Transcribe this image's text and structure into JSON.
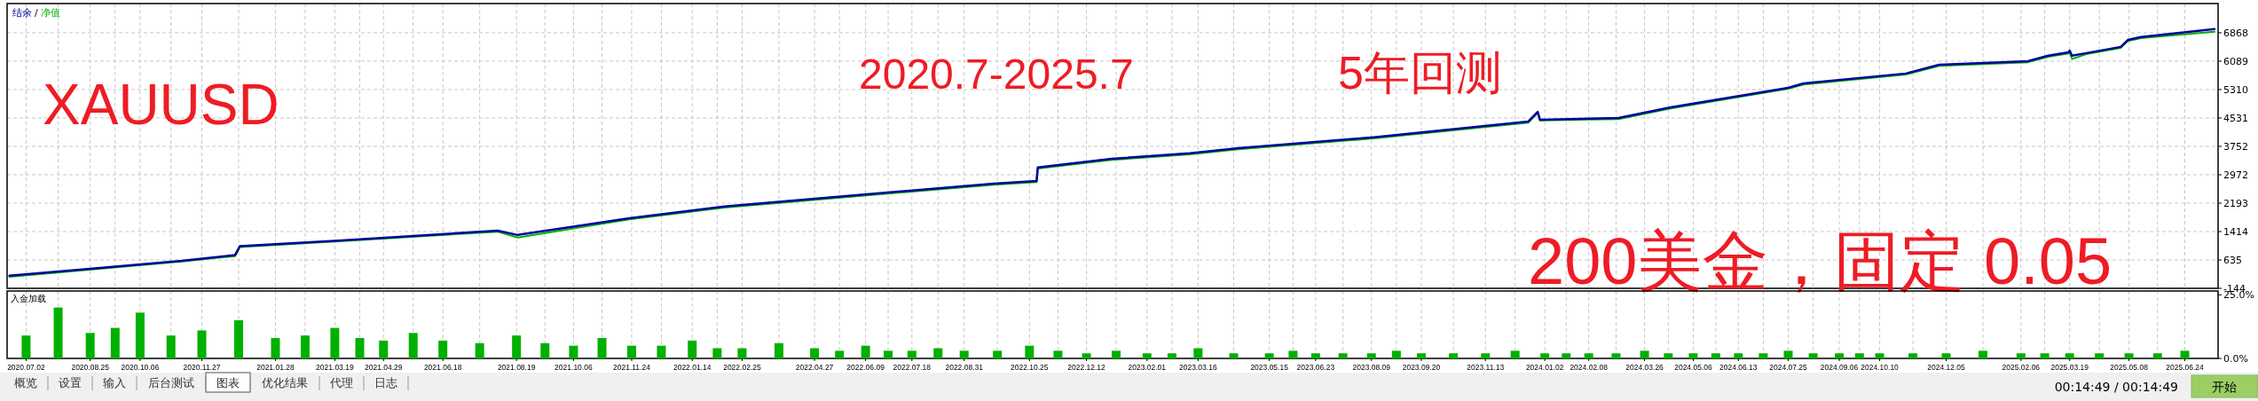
{
  "chart_data": [
    {
      "type": "line",
      "legend": "top left",
      "grid": true,
      "tick_labels": "y",
      "annotations": [
        "XAUUSD",
        "2020.7-2025.7",
        "5年回测",
        "200美金，固定 0.05",
        "/"
      ],
      "xlim": [
        "2020-06-16",
        "2025-07-22"
      ],
      "ylim": [
        -144,
        7670
      ],
      "yticks": [
        -144,
        635,
        1414,
        2193,
        2972,
        3752,
        4531,
        5310,
        6089,
        6868
      ],
      "xticks": [
        {
          "value": "2020-07-02",
          "label": null
        },
        {
          "value": "2020-07-29",
          "label": null
        },
        {
          "value": "2020-08-25",
          "label": null
        },
        {
          "value": "2020-09-15",
          "label": null
        },
        {
          "value": "2020-10-06",
          "label": null
        },
        {
          "value": "2020-11-01",
          "label": null
        },
        {
          "value": "2020-11-27",
          "label": null
        },
        {
          "value": "2020-12-28",
          "label": null
        },
        {
          "value": "2021-01-28",
          "label": null
        },
        {
          "value": "2021-02-22",
          "label": null
        },
        {
          "value": "2021-03-19",
          "label": null
        },
        {
          "value": "2021-04-09",
          "label": null
        },
        {
          "value": "2021-04-29",
          "label": null
        },
        {
          "value": "2021-05-24",
          "label": null
        },
        {
          "value": "2021-06-18",
          "label": null
        },
        {
          "value": "2021-07-19",
          "label": null
        },
        {
          "value": "2021-08-19",
          "label": null
        },
        {
          "value": "2021-09-12",
          "label": null
        },
        {
          "value": "2021-10-06",
          "label": null
        },
        {
          "value": "2021-10-30",
          "label": null
        },
        {
          "value": "2021-11-24",
          "label": null
        },
        {
          "value": "2021-12-19",
          "label": null
        },
        {
          "value": "2022-01-14",
          "label": null
        },
        {
          "value": "2022-02-04",
          "label": null
        },
        {
          "value": "2022-02-25",
          "label": null
        },
        {
          "value": "2022-03-28",
          "label": null
        },
        {
          "value": "2022-04-27",
          "label": null
        },
        {
          "value": "2022-05-18",
          "label": null
        },
        {
          "value": "2022-06-09",
          "label": null
        },
        {
          "value": "2022-06-28",
          "label": null
        },
        {
          "value": "2022-07-18",
          "label": null
        },
        {
          "value": "2022-08-09",
          "label": null
        },
        {
          "value": "2022-08-31",
          "label": null
        },
        {
          "value": "2022-09-28",
          "label": null
        },
        {
          "value": "2022-10-25",
          "label": null
        },
        {
          "value": "2022-11-18",
          "label": null
        },
        {
          "value": "2022-12-12",
          "label": null
        },
        {
          "value": "2023-01-06",
          "label": null
        },
        {
          "value": "2023-02-01",
          "label": null
        },
        {
          "value": "2023-02-22",
          "label": null
        },
        {
          "value": "2023-03-16",
          "label": null
        },
        {
          "value": "2023-04-15",
          "label": null
        },
        {
          "value": "2023-05-15",
          "label": null
        },
        {
          "value": "2023-06-04",
          "label": null
        },
        {
          "value": "2023-06-23",
          "label": null
        },
        {
          "value": "2023-07-16",
          "label": null
        },
        {
          "value": "2023-08-09",
          "label": null
        },
        {
          "value": "2023-08-30",
          "label": null
        },
        {
          "value": "2023-09-20",
          "label": null
        },
        {
          "value": "2023-10-17",
          "label": null
        },
        {
          "value": "2023-11-13",
          "label": null
        },
        {
          "value": "2023-12-08",
          "label": null
        },
        {
          "value": "2024-01-02",
          "label": null
        },
        {
          "value": "2024-01-20",
          "label": null
        },
        {
          "value": "2024-02-08",
          "label": null
        },
        {
          "value": "2024-03-02",
          "label": null
        },
        {
          "value": "2024-03-26",
          "label": null
        },
        {
          "value": "2024-04-15",
          "label": null
        },
        {
          "value": "2024-05-06",
          "label": null
        },
        {
          "value": "2024-05-25",
          "label": null
        },
        {
          "value": "2024-06-13",
          "label": null
        },
        {
          "value": "2024-07-04",
          "label": null
        },
        {
          "value": "2024-07-25",
          "label": null
        },
        {
          "value": "2024-08-15",
          "label": null
        },
        {
          "value": "2024-09-06",
          "label": null
        },
        {
          "value": "2024-09-23",
          "label": null
        },
        {
          "value": "2024-10-10",
          "label": null
        },
        {
          "value": "2024-11-07",
          "label": null
        },
        {
          "value": "2024-12-05",
          "label": null
        },
        {
          "value": "2025-01-05",
          "label": null
        },
        {
          "value": "2025-02-06",
          "label": null
        },
        {
          "value": "2025-02-26",
          "label": null
        },
        {
          "value": "2025-03-19",
          "label": null
        },
        {
          "value": "2025-04-13",
          "label": null
        },
        {
          "value": "2025-05-08",
          "label": null
        },
        {
          "value": "2025-06-01",
          "label": null
        },
        {
          "value": "2025-06-24",
          "label": null
        }
      ],
      "series": [
        {
          "name": "净值",
          "color": "#00b000",
          "x": [
            "2020-06-18",
            "2020-08-16",
            "2020-11-10",
            "2020-12-25",
            "2020-12-29",
            "2021-03-25",
            "2021-08-03",
            "2021-08-20",
            "2021-11-22",
            "2022-02-10",
            "2022-05-06",
            "2022-09-25",
            "2022-10-31",
            "2022-11-01",
            "2023-01-02",
            "2023-03-09",
            "2023-04-19",
            "2023-08-11",
            "2023-12-19",
            "2023-12-27",
            "2023-12-29",
            "2024-03-04",
            "2024-04-17",
            "2024-07-25",
            "2024-08-07",
            "2024-11-01",
            "2024-11-29",
            "2025-02-12",
            "2025-03-01",
            "2025-03-18",
            "2025-03-19",
            "2025-03-21",
            "2025-04-02",
            "2025-05-01",
            "2025-05-07",
            "2025-05-18",
            "2025-07-19"
          ],
          "values": [
            170,
            340,
            590,
            740,
            990,
            1150,
            1410,
            1250,
            1750,
            2070,
            2310,
            2700,
            2770,
            3140,
            3380,
            3530,
            3670,
            3970,
            4400,
            4670,
            4460,
            4500,
            4790,
            5330,
            5450,
            5720,
            5960,
            6060,
            6210,
            6300,
            6350,
            6150,
            6280,
            6450,
            6640,
            6720,
            6900
          ]
        },
        {
          "name": "结余",
          "color": "#0000a0",
          "x": [
            "2020-06-18",
            "2020-08-16",
            "2020-11-10",
            "2020-12-25",
            "2020-12-29",
            "2021-03-25",
            "2021-08-03",
            "2021-08-20",
            "2021-11-22",
            "2022-02-10",
            "2022-05-06",
            "2022-09-25",
            "2022-10-31",
            "2022-11-01",
            "2023-01-02",
            "2023-03-09",
            "2023-04-19",
            "2023-08-11",
            "2023-12-19",
            "2023-12-27",
            "2023-12-29",
            "2024-03-04",
            "2024-04-17",
            "2024-07-25",
            "2024-08-07",
            "2024-11-01",
            "2024-11-29",
            "2025-02-12",
            "2025-03-01",
            "2025-03-18",
            "2025-03-19",
            "2025-03-21",
            "2025-04-02",
            "2025-05-01",
            "2025-05-07",
            "2025-05-18",
            "2025-07-19"
          ],
          "values": [
            200,
            370,
            610,
            770,
            1010,
            1170,
            1440,
            1320,
            1780,
            2100,
            2340,
            2730,
            2800,
            3170,
            3410,
            3560,
            3700,
            4000,
            4430,
            4700,
            4480,
            4530,
            4820,
            5360,
            5480,
            5750,
            5990,
            6090,
            6240,
            6330,
            6380,
            6240,
            6310,
            6480,
            6670,
            6750,
            6970
          ]
        }
      ]
    },
    {
      "type": "bar",
      "title": "入金加载",
      "grid": "x",
      "xlim": [
        "2020-06-16",
        "2025-07-22"
      ],
      "ylim": [
        0,
        26.5
      ],
      "yticks": [
        {
          "value": 0,
          "label": "0.0%"
        },
        {
          "value": 25,
          "label": "25.0%"
        }
      ],
      "xticks": [
        {
          "value": "2020-07-02",
          "label": "2020.07.02"
        },
        {
          "value": "2020-07-29",
          "label": null
        },
        {
          "value": "2020-08-25",
          "label": "2020.08.25"
        },
        {
          "value": "2020-09-15",
          "label": null
        },
        {
          "value": "2020-10-06",
          "label": "2020.10.06"
        },
        {
          "value": "2020-11-01",
          "label": null
        },
        {
          "value": "2020-11-27",
          "label": "2020.11.27"
        },
        {
          "value": "2020-12-28",
          "label": null
        },
        {
          "value": "2021-01-28",
          "label": "2021.01.28"
        },
        {
          "value": "2021-02-22",
          "label": null
        },
        {
          "value": "2021-03-19",
          "label": "2021.03.19"
        },
        {
          "value": "2021-04-09",
          "label": null
        },
        {
          "value": "2021-04-29",
          "label": "2021.04.29"
        },
        {
          "value": "2021-05-24",
          "label": null
        },
        {
          "value": "2021-06-18",
          "label": "2021.06.18"
        },
        {
          "value": "2021-07-19",
          "label": null
        },
        {
          "value": "2021-08-19",
          "label": "2021.08.19"
        },
        {
          "value": "2021-09-12",
          "label": null
        },
        {
          "value": "2021-10-06",
          "label": "2021.10.06"
        },
        {
          "value": "2021-10-30",
          "label": null
        },
        {
          "value": "2021-11-24",
          "label": "2021.11.24"
        },
        {
          "value": "2021-12-19",
          "label": null
        },
        {
          "value": "2022-01-14",
          "label": "2022.01.14"
        },
        {
          "value": "2022-02-04",
          "label": null
        },
        {
          "value": "2022-02-25",
          "label": "2022.02.25"
        },
        {
          "value": "2022-03-28",
          "label": null
        },
        {
          "value": "2022-04-27",
          "label": "2022.04.27"
        },
        {
          "value": "2022-05-18",
          "label": null
        },
        {
          "value": "2022-06-09",
          "label": "2022.06.09"
        },
        {
          "value": "2022-06-28",
          "label": null
        },
        {
          "value": "2022-07-18",
          "label": "2022.07.18"
        },
        {
          "value": "2022-08-09",
          "label": null
        },
        {
          "value": "2022-08-31",
          "label": "2022.08.31"
        },
        {
          "value": "2022-09-28",
          "label": null
        },
        {
          "value": "2022-10-25",
          "label": "2022.10.25"
        },
        {
          "value": "2022-11-18",
          "label": null
        },
        {
          "value": "2022-12-12",
          "label": "2022.12.12"
        },
        {
          "value": "2023-01-06",
          "label": null
        },
        {
          "value": "2023-02-01",
          "label": "2023.02.01"
        },
        {
          "value": "2023-02-22",
          "label": null
        },
        {
          "value": "2023-03-16",
          "label": "2023.03.16"
        },
        {
          "value": "2023-04-15",
          "label": null
        },
        {
          "value": "2023-05-15",
          "label": "2023.05.15"
        },
        {
          "value": "2023-06-04",
          "label": null
        },
        {
          "value": "2023-06-23",
          "label": "2023.06.23"
        },
        {
          "value": "2023-07-16",
          "label": null
        },
        {
          "value": "2023-08-09",
          "label": "2023.08.09"
        },
        {
          "value": "2023-08-30",
          "label": null
        },
        {
          "value": "2023-09-20",
          "label": "2023.09.20"
        },
        {
          "value": "2023-10-17",
          "label": null
        },
        {
          "value": "2023-11-13",
          "label": "2023.11.13"
        },
        {
          "value": "2023-12-08",
          "label": null
        },
        {
          "value": "2024-01-02",
          "label": "2024.01.02"
        },
        {
          "value": "2024-01-20",
          "label": null
        },
        {
          "value": "2024-02-08",
          "label": "2024.02.08"
        },
        {
          "value": "2024-03-02",
          "label": null
        },
        {
          "value": "2024-03-26",
          "label": "2024.03.26"
        },
        {
          "value": "2024-04-15",
          "label": null
        },
        {
          "value": "2024-05-06",
          "label": "2024.05.06"
        },
        {
          "value": "2024-05-25",
          "label": null
        },
        {
          "value": "2024-06-13",
          "label": "2024.06.13"
        },
        {
          "value": "2024-07-04",
          "label": null
        },
        {
          "value": "2024-07-25",
          "label": "2024.07.25"
        },
        {
          "value": "2024-08-15",
          "label": null
        },
        {
          "value": "2024-09-06",
          "label": "2024.09.06"
        },
        {
          "value": "2024-09-23",
          "label": null
        },
        {
          "value": "2024-10-10",
          "label": "2024.10.10"
        },
        {
          "value": "2024-11-07",
          "label": null
        },
        {
          "value": "2024-12-05",
          "label": "2024.12.05"
        },
        {
          "value": "2025-01-05",
          "label": null
        },
        {
          "value": "2025-02-06",
          "label": "2025.02.06"
        },
        {
          "value": "2025-02-26",
          "label": null
        },
        {
          "value": "2025-03-19",
          "label": "2025.03.19"
        },
        {
          "value": "2025-04-13",
          "label": null
        },
        {
          "value": "2025-05-08",
          "label": "2025.05.08"
        },
        {
          "value": "2025-06-01",
          "label": null
        },
        {
          "value": "2025-06-24",
          "label": "2025.06.24"
        }
      ],
      "series": [
        {
          "color": "#00b000",
          "x": [
            "2020-07-02",
            "2020-07-29",
            "2020-08-25",
            "2020-09-15",
            "2020-10-06",
            "2020-11-01",
            "2020-11-27",
            "2020-12-28",
            "2021-01-28",
            "2021-02-22",
            "2021-03-19",
            "2021-04-09",
            "2021-04-29",
            "2021-05-24",
            "2021-06-18",
            "2021-07-19",
            "2021-08-19",
            "2021-09-12",
            "2021-10-06",
            "2021-10-30",
            "2021-11-24",
            "2021-12-19",
            "2022-01-14",
            "2022-02-04",
            "2022-02-25",
            "2022-03-28",
            "2022-04-27",
            "2022-05-18",
            "2022-06-09",
            "2022-06-28",
            "2022-07-18",
            "2022-08-09",
            "2022-08-31",
            "2022-09-28",
            "2022-10-25",
            "2022-11-18",
            "2022-12-12",
            "2023-01-06",
            "2023-02-01",
            "2023-02-22",
            "2023-03-16",
            "2023-04-15",
            "2023-05-15",
            "2023-06-04",
            "2023-06-23",
            "2023-07-16",
            "2023-08-09",
            "2023-08-30",
            "2023-09-20",
            "2023-10-17",
            "2023-11-13",
            "2023-12-08",
            "2024-01-02",
            "2024-01-20",
            "2024-02-08",
            "2024-03-02",
            "2024-03-26",
            "2024-04-15",
            "2024-05-06",
            "2024-05-25",
            "2024-06-13",
            "2024-07-04",
            "2024-07-25",
            "2024-08-15",
            "2024-09-06",
            "2024-09-23",
            "2024-10-10",
            "2024-11-07",
            "2024-12-05",
            "2025-01-05",
            "2025-02-06",
            "2025-02-26",
            "2025-03-19",
            "2025-04-13",
            "2025-05-08",
            "2025-06-01",
            "2025-06-24"
          ],
          "values": [
            9,
            20,
            10,
            12,
            18,
            9,
            11,
            15,
            8,
            9,
            12,
            8,
            7,
            10,
            7,
            6,
            9,
            6,
            5,
            8,
            5,
            5,
            7,
            4,
            4,
            6,
            4,
            3,
            5,
            3,
            3,
            4,
            3,
            3,
            5,
            3,
            2,
            3,
            2,
            2,
            4,
            2,
            2,
            3,
            2,
            2,
            2,
            3,
            2,
            2,
            2,
            3,
            2,
            2,
            2,
            2,
            3,
            2,
            2,
            2,
            2,
            2,
            3,
            2,
            2,
            2,
            2,
            2,
            2,
            3,
            2,
            2,
            2,
            2,
            2,
            2,
            3
          ]
        }
      ]
    },
    {
      "type": "other",
      "categories": [
        "概览",
        "设置",
        "输入",
        "后台测试",
        "图表",
        "优化结果",
        "代理",
        "日志"
      ],
      "annotations": [
        "00:14:49 / 00:14:49",
        "开始"
      ]
    }
  ]
}
